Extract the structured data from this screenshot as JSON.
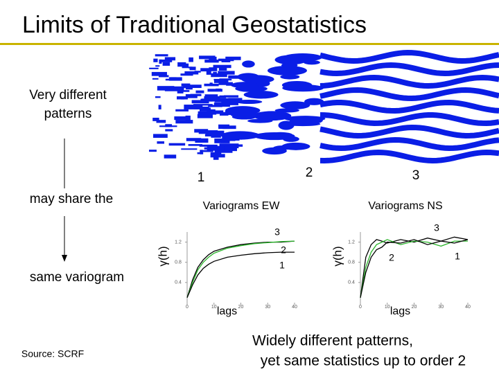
{
  "title": "Limits of Traditional Geostatistics",
  "left_text": {
    "line1": "Very different",
    "line2": "patterns",
    "middle": "may share the",
    "bottom": "same variogram"
  },
  "source": "Source: SCRF",
  "pattern_labels": [
    "1",
    "2",
    "3"
  ],
  "conclusion": {
    "line1": "Widely different patterns,",
    "line2": "yet same statistics up to order 2"
  },
  "variograms": [
    {
      "title": "Variograms EW",
      "ylabel": "γ(h)",
      "xlabel": "lags",
      "xlim": [
        0,
        40
      ],
      "ylim": [
        0,
        1.4
      ],
      "xticks": [
        0,
        10,
        20,
        30,
        40
      ],
      "yticks": [
        0.4,
        0.8,
        1.2
      ],
      "x": [
        0,
        2,
        4,
        6,
        8,
        10,
        15,
        20,
        25,
        30,
        35,
        40
      ],
      "series": [
        {
          "label": "3",
          "color": "#000000",
          "values": [
            0.1,
            0.45,
            0.7,
            0.85,
            0.95,
            1.02,
            1.1,
            1.15,
            1.18,
            1.2,
            1.2,
            1.22
          ]
        },
        {
          "label": "2",
          "color": "#2bb52b",
          "values": [
            0.1,
            0.4,
            0.65,
            0.8,
            0.9,
            0.98,
            1.08,
            1.13,
            1.17,
            1.19,
            1.21,
            1.22
          ]
        },
        {
          "label": "1",
          "color": "#000000",
          "values": [
            0.1,
            0.35,
            0.55,
            0.68,
            0.76,
            0.82,
            0.9,
            0.94,
            0.97,
            0.99,
            1.0,
            1.0
          ]
        }
      ]
    },
    {
      "title": "Variograms NS",
      "ylabel": "γ(h)",
      "xlabel": "lags",
      "xlim": [
        0,
        40
      ],
      "ylim": [
        0,
        1.4
      ],
      "xticks": [
        0,
        10,
        20,
        30,
        40
      ],
      "yticks": [
        0.4,
        0.8,
        1.2
      ],
      "x": [
        0,
        2,
        4,
        6,
        8,
        10,
        15,
        20,
        25,
        30,
        35,
        40
      ],
      "series": [
        {
          "label": "3",
          "color": "#000000",
          "values": [
            0.1,
            0.9,
            1.15,
            1.25,
            1.22,
            1.18,
            1.25,
            1.2,
            1.28,
            1.22,
            1.3,
            1.25
          ]
        },
        {
          "label": "2",
          "color": "#2bb52b",
          "values": [
            0.1,
            0.7,
            1.0,
            1.15,
            1.2,
            1.25,
            1.15,
            1.22,
            1.2,
            1.12,
            1.22,
            1.22
          ]
        },
        {
          "label": "1",
          "color": "#000000",
          "values": [
            0.1,
            0.6,
            0.9,
            1.05,
            1.1,
            1.2,
            1.18,
            1.25,
            1.15,
            1.22,
            1.18,
            1.25
          ]
        }
      ]
    }
  ]
}
